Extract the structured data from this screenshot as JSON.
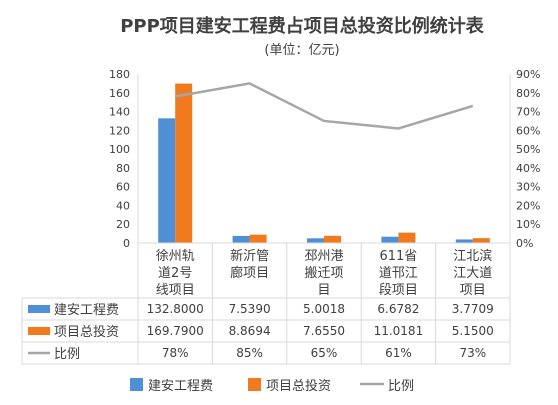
{
  "chart_data": {
    "type": "bar",
    "title": "PPP项目建安工程费占项目总投资比例统计表",
    "subtitle": "(单位：亿元)",
    "categories": [
      [
        "徐州轨",
        "道2号",
        "线项目"
      ],
      [
        "新沂管",
        "廊项目"
      ],
      [
        "邳州港",
        "搬迁项",
        "目"
      ],
      [
        "611省",
        "道邗江",
        "段项目"
      ],
      [
        "江北滨",
        "江大道",
        "项目"
      ]
    ],
    "series": [
      {
        "name": "建安工程费",
        "color": "#4F8FD6",
        "axis": "left",
        "kind": "bar",
        "values": [
          132.8,
          7.539,
          5.0018,
          6.6782,
          3.7709
        ],
        "labels": [
          "132.8000",
          "7.5390",
          "5.0018",
          "6.6782",
          "3.7709"
        ]
      },
      {
        "name": "项目总投资",
        "color": "#F07A1D",
        "axis": "left",
        "kind": "bar",
        "values": [
          169.79,
          8.8694,
          7.655,
          11.0181,
          5.15
        ],
        "labels": [
          "169.7900",
          "8.8694",
          "7.6550",
          "11.0181",
          "5.1500"
        ]
      },
      {
        "name": "比例",
        "color": "#A6A6A6",
        "axis": "right",
        "kind": "line",
        "values": [
          78,
          85,
          65,
          61,
          73
        ],
        "labels": [
          "78%",
          "85%",
          "65%",
          "61%",
          "73%"
        ]
      }
    ],
    "y_left": {
      "min": 0,
      "max": 180,
      "ticks": [
        0,
        20,
        40,
        60,
        80,
        100,
        120,
        140,
        160,
        180
      ]
    },
    "y_right": {
      "min": 0,
      "max": 90,
      "ticks": [
        "0%",
        "10%",
        "20%",
        "30%",
        "40%",
        "50%",
        "60%",
        "70%",
        "80%",
        "90%"
      ]
    },
    "grid": false,
    "legend": "bottom",
    "data_table": true
  }
}
